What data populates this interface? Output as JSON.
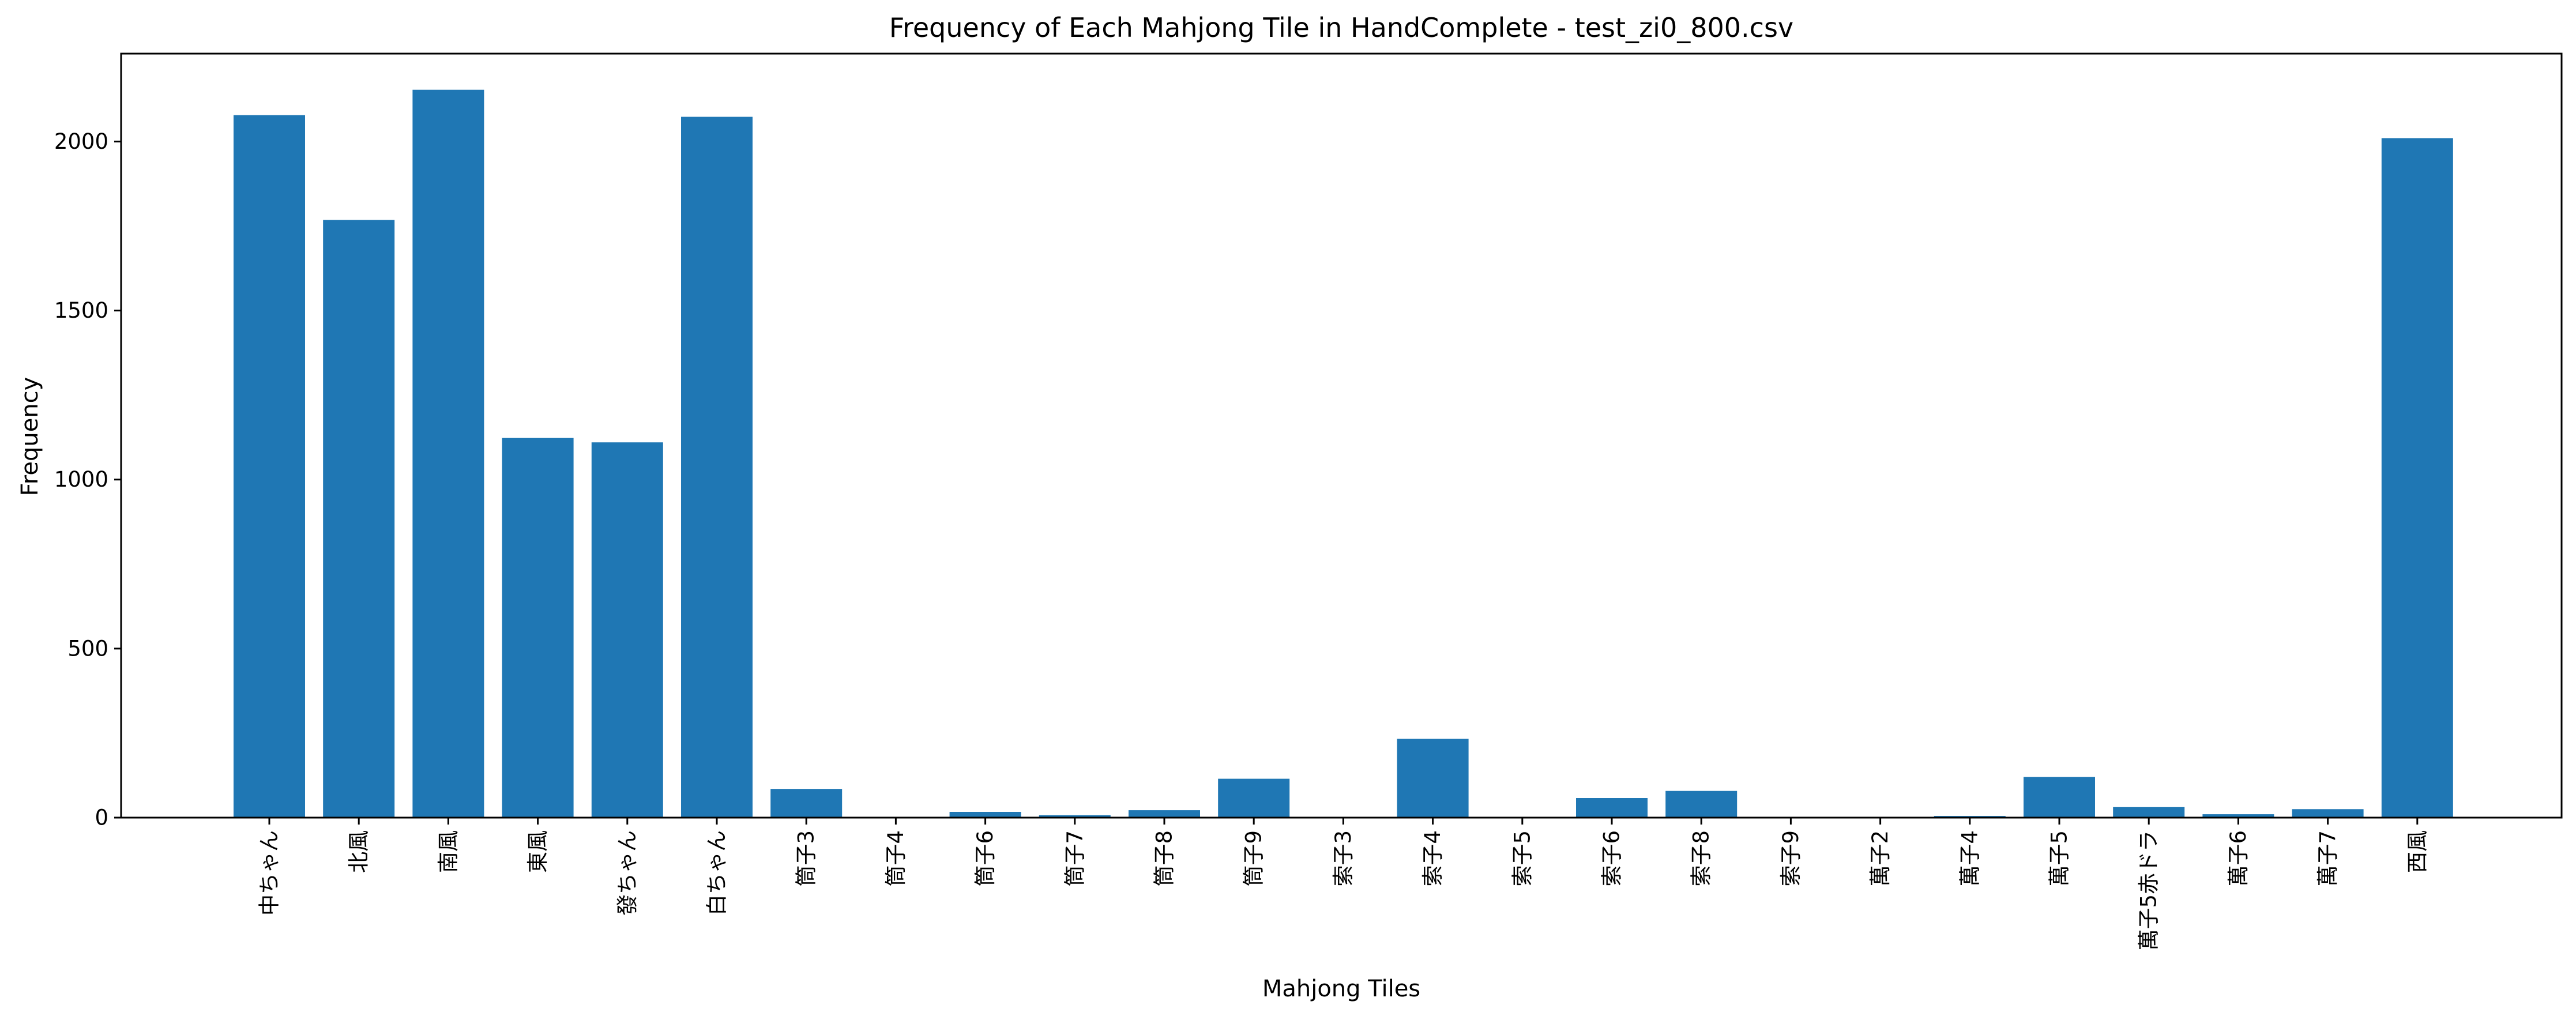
{
  "chart_data": {
    "type": "bar",
    "title": "Frequency of Each Mahjong Tile in HandComplete - test_zi0_800.csv",
    "xlabel": "Mahjong Tiles",
    "ylabel": "Frequency",
    "ylim": [
      0,
      2260
    ],
    "yticks": [
      0,
      500,
      1000,
      1500,
      2000
    ],
    "grid": false,
    "bar_color": "#1f77b4",
    "categories": [
      "中ちゃん",
      "北風",
      "南風",
      "東風",
      "發ちゃん",
      "白ちゃん",
      "筒子3",
      "筒子4",
      "筒子6",
      "筒子7",
      "筒子8",
      "筒子9",
      "索子3",
      "索子4",
      "索子5",
      "索子6",
      "索子8",
      "索子9",
      "萬子2",
      "萬子4",
      "萬子5",
      "萬子5赤ドラ",
      "萬子6",
      "萬子7",
      "西風"
    ],
    "values": [
      2078,
      1768,
      2153,
      1123,
      1110,
      2073,
      85,
      0,
      17,
      7,
      22,
      115,
      0,
      233,
      0,
      58,
      79,
      0,
      0,
      5,
      120,
      31,
      10,
      25,
      2010
    ]
  }
}
